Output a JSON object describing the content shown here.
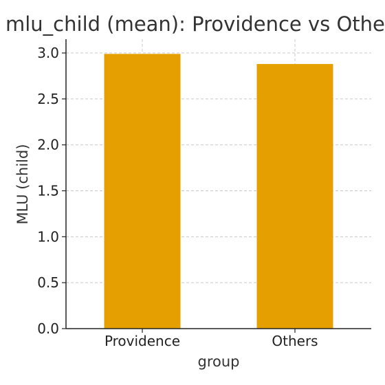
{
  "chart_data": {
    "type": "bar",
    "title": "mlu_child (mean): Providence vs Others",
    "xlabel": "group",
    "ylabel": "MLU (child)",
    "categories": [
      "Providence",
      "Others"
    ],
    "values": [
      2.99,
      2.88
    ],
    "ylim": [
      0,
      3.15
    ],
    "yticks": [
      "0.0",
      "0.5",
      "1.0",
      "1.5",
      "2.0",
      "2.5",
      "3.0"
    ],
    "grid": true,
    "bar_color": "#E5A000"
  }
}
